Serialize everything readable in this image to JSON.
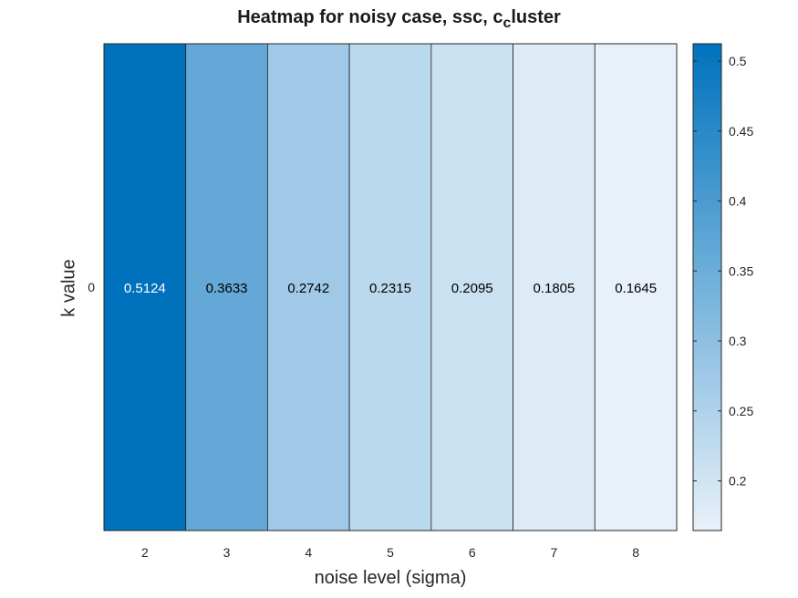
{
  "chart_data": {
    "type": "heatmap",
    "title_main": "Heatmap for noisy case, ssc, c",
    "title_sub": "c",
    "title_rest": "luster",
    "xlabel": "noise level (sigma)",
    "ylabel": "k value",
    "x": [
      "2",
      "3",
      "4",
      "5",
      "6",
      "7",
      "8"
    ],
    "y": [
      "0"
    ],
    "values": [
      [
        0.5124,
        0.3633,
        0.2742,
        0.2315,
        0.2095,
        0.1805,
        0.1645
      ]
    ],
    "value_labels": [
      [
        "0.5124",
        "0.3633",
        "0.2742",
        "0.2315",
        "0.2095",
        "0.1805",
        "0.1645"
      ]
    ],
    "colorbar": {
      "ticks": [
        0.2,
        0.25,
        0.3,
        0.35,
        0.4,
        0.45,
        0.5
      ],
      "tick_labels": [
        "0.2",
        "0.25",
        "0.3",
        "0.35",
        "0.4",
        "0.45",
        "0.5"
      ],
      "range": [
        0.1645,
        0.5124
      ],
      "color_low": "#e8f1f9",
      "color_high": "#0072bd"
    }
  }
}
